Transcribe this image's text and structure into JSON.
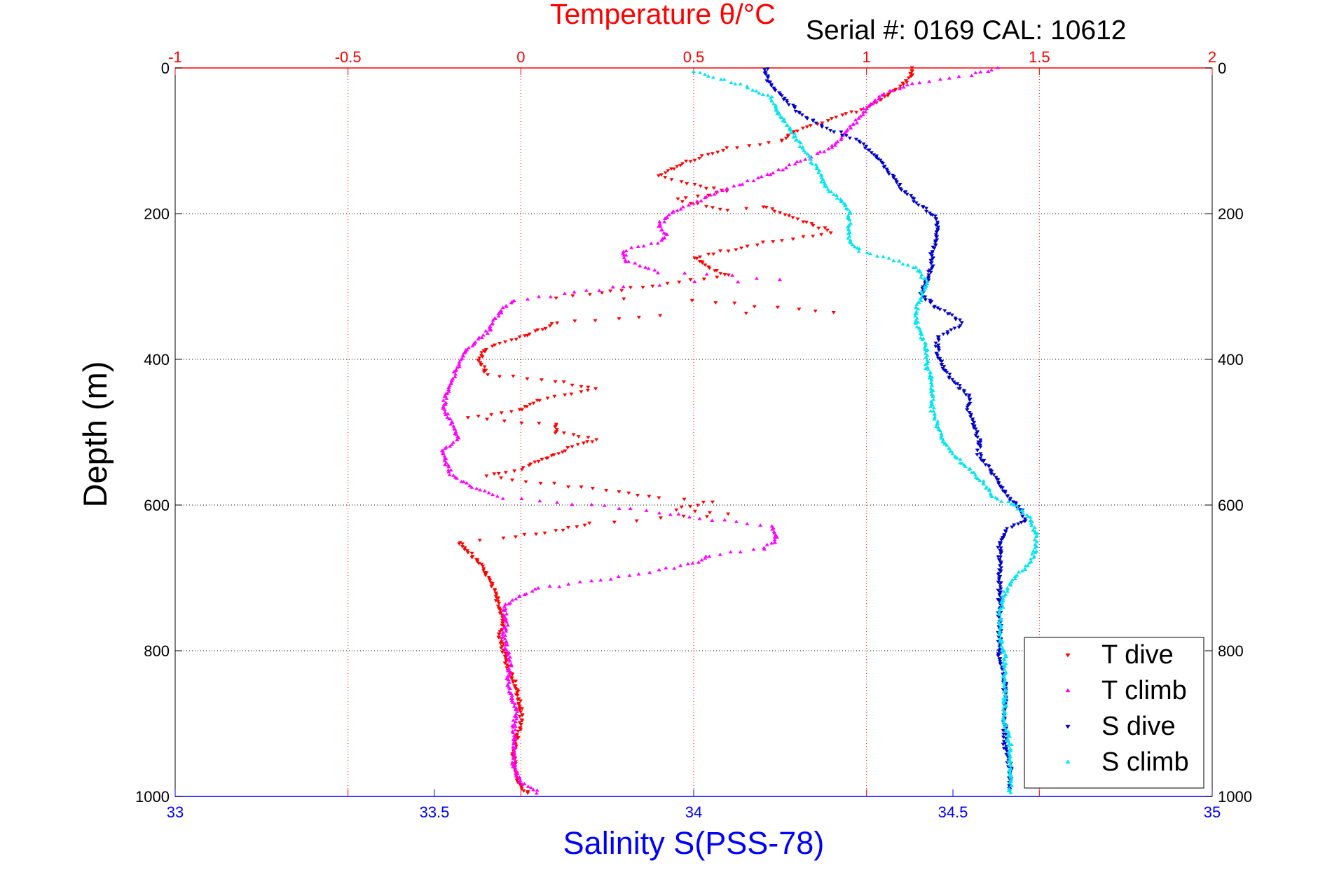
{
  "chart_data": {
    "type": "scatter",
    "title": "Temperature θ/°C",
    "subtitle": "Serial #: 0169 CAL: 10612",
    "top_axis": {
      "label": "Temperature θ/°C",
      "range": [
        -1,
        2
      ],
      "ticks": [
        -1,
        -0.5,
        0,
        0.5,
        1,
        1.5,
        2
      ],
      "tick_labels": [
        "-1",
        "-0.5",
        "0",
        "0.5",
        "1",
        "1.5",
        "2"
      ],
      "color": "#ff0000",
      "grid": true
    },
    "bottom_axis": {
      "label": "Salinity S(PSS-78)",
      "range": [
        33,
        35
      ],
      "ticks": [
        33,
        33.5,
        34,
        34.5,
        35
      ],
      "tick_labels": [
        "33",
        "33.5",
        "34",
        "34.5",
        "35"
      ],
      "color": "#0000ff"
    },
    "y_axis": {
      "label": "Depth (m)",
      "range": [
        0,
        1000
      ],
      "reversed": true,
      "ticks": [
        0,
        200,
        400,
        600,
        800,
        1000
      ],
      "tick_labels": [
        "0",
        "200",
        "400",
        "600",
        "800",
        "1000"
      ],
      "color": "#000000",
      "grid": true
    },
    "legend": {
      "position": "bottom-right",
      "entries": [
        "T dive",
        "T climb",
        "S dive",
        "S climb"
      ]
    },
    "series": [
      {
        "name": "T dive",
        "axis": "temperature",
        "color": "#ff0000",
        "marker": "triangle-down",
        "points": [
          [
            1.13,
            0
          ],
          [
            1.13,
            10
          ],
          [
            1.1,
            25
          ],
          [
            1.05,
            40
          ],
          [
            1.0,
            55
          ],
          [
            0.9,
            70
          ],
          [
            0.8,
            85
          ],
          [
            0.75,
            100
          ],
          [
            0.6,
            110
          ],
          [
            0.5,
            125
          ],
          [
            0.45,
            135
          ],
          [
            0.4,
            148
          ],
          [
            0.5,
            160
          ],
          [
            0.6,
            170
          ],
          [
            0.45,
            180
          ],
          [
            0.6,
            195
          ],
          [
            0.7,
            190
          ],
          [
            0.9,
            225
          ],
          [
            0.7,
            240
          ],
          [
            0.6,
            250
          ],
          [
            0.5,
            260
          ],
          [
            0.55,
            275
          ],
          [
            0.6,
            285
          ],
          [
            0.35,
            300
          ],
          [
            0.2,
            310
          ],
          [
            0.1,
            315
          ],
          [
            0.5,
            320
          ],
          [
            0.8,
            330
          ],
          [
            0.9,
            335
          ],
          [
            0.4,
            340
          ],
          [
            0.1,
            350
          ],
          [
            0.05,
            360
          ],
          [
            0.0,
            370
          ],
          [
            -0.1,
            385
          ],
          [
            -0.12,
            400
          ],
          [
            -0.1,
            420
          ],
          [
            0.1,
            430
          ],
          [
            0.22,
            440
          ],
          [
            0.05,
            455
          ],
          [
            0.0,
            470
          ],
          [
            -0.15,
            480
          ],
          [
            0.1,
            490
          ],
          [
            0.1,
            500
          ],
          [
            0.22,
            510
          ],
          [
            0.15,
            520
          ],
          [
            0.1,
            530
          ],
          [
            0.05,
            540
          ],
          [
            0.0,
            550
          ],
          [
            -0.1,
            560
          ],
          [
            0.25,
            580
          ],
          [
            0.4,
            590
          ],
          [
            0.55,
            595
          ],
          [
            0.45,
            605
          ],
          [
            0.6,
            612
          ],
          [
            0.2,
            625
          ],
          [
            0.1,
            635
          ],
          [
            -0.05,
            645
          ],
          [
            -0.18,
            650
          ],
          [
            -0.15,
            665
          ],
          [
            -0.12,
            680
          ],
          [
            -0.1,
            695
          ],
          [
            -0.08,
            715
          ],
          [
            -0.06,
            740
          ],
          [
            -0.05,
            760
          ],
          [
            -0.06,
            780
          ],
          [
            -0.05,
            800
          ],
          [
            -0.04,
            820
          ],
          [
            -0.02,
            840
          ],
          [
            -0.01,
            860
          ],
          [
            0.0,
            880
          ],
          [
            0.0,
            900
          ],
          [
            -0.01,
            920
          ],
          [
            -0.02,
            940
          ],
          [
            -0.02,
            960
          ],
          [
            -0.01,
            980
          ],
          [
            0.02,
            995
          ]
        ]
      },
      {
        "name": "T climb",
        "axis": "temperature",
        "color": "#ff00ff",
        "marker": "triangle-up",
        "points": [
          [
            0.05,
            995
          ],
          [
            0.0,
            980
          ],
          [
            -0.02,
            960
          ],
          [
            -0.02,
            940
          ],
          [
            -0.02,
            920
          ],
          [
            -0.02,
            900
          ],
          [
            -0.01,
            880
          ],
          [
            -0.03,
            860
          ],
          [
            -0.04,
            840
          ],
          [
            -0.03,
            820
          ],
          [
            -0.04,
            800
          ],
          [
            -0.05,
            780
          ],
          [
            -0.04,
            760
          ],
          [
            -0.05,
            740
          ],
          [
            0.0,
            725
          ],
          [
            0.05,
            715
          ],
          [
            0.2,
            705
          ],
          [
            0.4,
            690
          ],
          [
            0.5,
            680
          ],
          [
            0.55,
            670
          ],
          [
            0.7,
            660
          ],
          [
            0.74,
            650
          ],
          [
            0.73,
            630
          ],
          [
            0.55,
            620
          ],
          [
            0.4,
            610
          ],
          [
            0.2,
            600
          ],
          [
            -0.05,
            590
          ],
          [
            -0.12,
            580
          ],
          [
            -0.2,
            560
          ],
          [
            -0.22,
            540
          ],
          [
            -0.23,
            525
          ],
          [
            -0.18,
            510
          ],
          [
            -0.2,
            490
          ],
          [
            -0.22,
            470
          ],
          [
            -0.22,
            450
          ],
          [
            -0.2,
            430
          ],
          [
            -0.18,
            410
          ],
          [
            -0.17,
            395
          ],
          [
            -0.14,
            380
          ],
          [
            -0.1,
            365
          ],
          [
            -0.08,
            350
          ],
          [
            -0.05,
            330
          ],
          [
            -0.02,
            320
          ],
          [
            0.3,
            300
          ],
          [
            0.5,
            295
          ],
          [
            0.75,
            290
          ],
          [
            0.4,
            280
          ],
          [
            0.3,
            265
          ],
          [
            0.3,
            250
          ],
          [
            0.4,
            240
          ],
          [
            0.42,
            230
          ],
          [
            0.4,
            215
          ],
          [
            0.45,
            195
          ],
          [
            0.55,
            175
          ],
          [
            0.6,
            165
          ],
          [
            0.7,
            150
          ],
          [
            0.8,
            130
          ],
          [
            0.9,
            110
          ],
          [
            0.95,
            85
          ],
          [
            1.0,
            55
          ],
          [
            1.05,
            35
          ],
          [
            1.15,
            20
          ],
          [
            1.3,
            10
          ],
          [
            1.38,
            0
          ]
        ]
      },
      {
        "name": "S dive",
        "axis": "salinity",
        "color": "#0000cc",
        "marker": "triangle-down",
        "points": [
          [
            34.14,
            0
          ],
          [
            34.14,
            10
          ],
          [
            34.15,
            25
          ],
          [
            34.18,
            45
          ],
          [
            34.2,
            60
          ],
          [
            34.25,
            80
          ],
          [
            34.32,
            100
          ],
          [
            34.35,
            120
          ],
          [
            34.38,
            145
          ],
          [
            34.4,
            165
          ],
          [
            34.43,
            185
          ],
          [
            34.46,
            200
          ],
          [
            34.47,
            215
          ],
          [
            34.47,
            235
          ],
          [
            34.46,
            255
          ],
          [
            34.46,
            270
          ],
          [
            34.45,
            290
          ],
          [
            34.44,
            310
          ],
          [
            34.47,
            330
          ],
          [
            34.5,
            340
          ],
          [
            34.52,
            350
          ],
          [
            34.47,
            370
          ],
          [
            34.47,
            390
          ],
          [
            34.48,
            410
          ],
          [
            34.5,
            430
          ],
          [
            34.53,
            450
          ],
          [
            34.53,
            470
          ],
          [
            34.54,
            490
          ],
          [
            34.55,
            510
          ],
          [
            34.55,
            530
          ],
          [
            34.57,
            550
          ],
          [
            34.59,
            570
          ],
          [
            34.61,
            590
          ],
          [
            34.63,
            605
          ],
          [
            34.64,
            620
          ],
          [
            34.6,
            635
          ],
          [
            34.59,
            650
          ],
          [
            34.59,
            670
          ],
          [
            34.59,
            690
          ],
          [
            34.59,
            720
          ],
          [
            34.59,
            750
          ],
          [
            34.59,
            780
          ],
          [
            34.59,
            810
          ],
          [
            34.6,
            840
          ],
          [
            34.6,
            870
          ],
          [
            34.6,
            900
          ],
          [
            34.6,
            930
          ],
          [
            34.61,
            960
          ],
          [
            34.61,
            990
          ]
        ]
      },
      {
        "name": "S climb",
        "axis": "salinity",
        "color": "#00e5ee",
        "marker": "triangle-up",
        "points": [
          [
            34.61,
            995
          ],
          [
            34.61,
            960
          ],
          [
            34.61,
            930
          ],
          [
            34.6,
            900
          ],
          [
            34.6,
            870
          ],
          [
            34.6,
            840
          ],
          [
            34.6,
            810
          ],
          [
            34.59,
            780
          ],
          [
            34.59,
            750
          ],
          [
            34.6,
            720
          ],
          [
            34.62,
            700
          ],
          [
            34.65,
            680
          ],
          [
            34.66,
            660
          ],
          [
            34.66,
            640
          ],
          [
            34.65,
            620
          ],
          [
            34.62,
            600
          ],
          [
            34.58,
            590
          ],
          [
            34.56,
            570
          ],
          [
            34.53,
            550
          ],
          [
            34.5,
            530
          ],
          [
            34.48,
            510
          ],
          [
            34.47,
            490
          ],
          [
            34.46,
            470
          ],
          [
            34.46,
            450
          ],
          [
            34.46,
            430
          ],
          [
            34.45,
            410
          ],
          [
            34.45,
            390
          ],
          [
            34.44,
            370
          ],
          [
            34.43,
            350
          ],
          [
            34.43,
            330
          ],
          [
            34.44,
            310
          ],
          [
            34.45,
            295
          ],
          [
            34.43,
            275
          ],
          [
            34.38,
            262
          ],
          [
            34.32,
            252
          ],
          [
            34.3,
            240
          ],
          [
            34.3,
            225
          ],
          [
            34.3,
            210
          ],
          [
            34.3,
            195
          ],
          [
            34.28,
            180
          ],
          [
            34.25,
            160
          ],
          [
            34.24,
            140
          ],
          [
            34.22,
            120
          ],
          [
            34.2,
            100
          ],
          [
            34.18,
            80
          ],
          [
            34.16,
            60
          ],
          [
            34.15,
            40
          ],
          [
            34.1,
            25
          ],
          [
            34.05,
            15
          ],
          [
            34.0,
            5
          ]
        ]
      }
    ]
  }
}
